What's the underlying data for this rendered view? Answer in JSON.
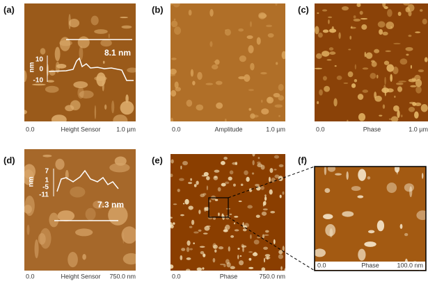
{
  "panels": [
    {
      "label": "(a)",
      "start": "0.0",
      "channel": "Height Sensor",
      "end": "1.0 µm",
      "profile": {
        "unit": "nm",
        "ticks": [
          "10",
          "0",
          "-10"
        ],
        "height": "8.1 nm"
      }
    },
    {
      "label": "(b)",
      "start": "0.0",
      "channel": "Amplitude",
      "end": "1.0 µm"
    },
    {
      "label": "(c)",
      "start": "0.0",
      "channel": "Phase",
      "end": "1.0 µm"
    },
    {
      "label": "(d)",
      "start": "0.0",
      "channel": "Height Sensor",
      "end": "750.0 nm",
      "profile": {
        "unit": "nm",
        "ticks": [
          "7",
          "1",
          "-5",
          "-11"
        ],
        "height": "7.3 nm"
      }
    },
    {
      "label": "(e)",
      "start": "0.0",
      "channel": "Phase",
      "end": "750.0 nm"
    },
    {
      "label": "(f)",
      "start": "0.0",
      "channel": "Phase",
      "end": "100.0 nm"
    }
  ]
}
